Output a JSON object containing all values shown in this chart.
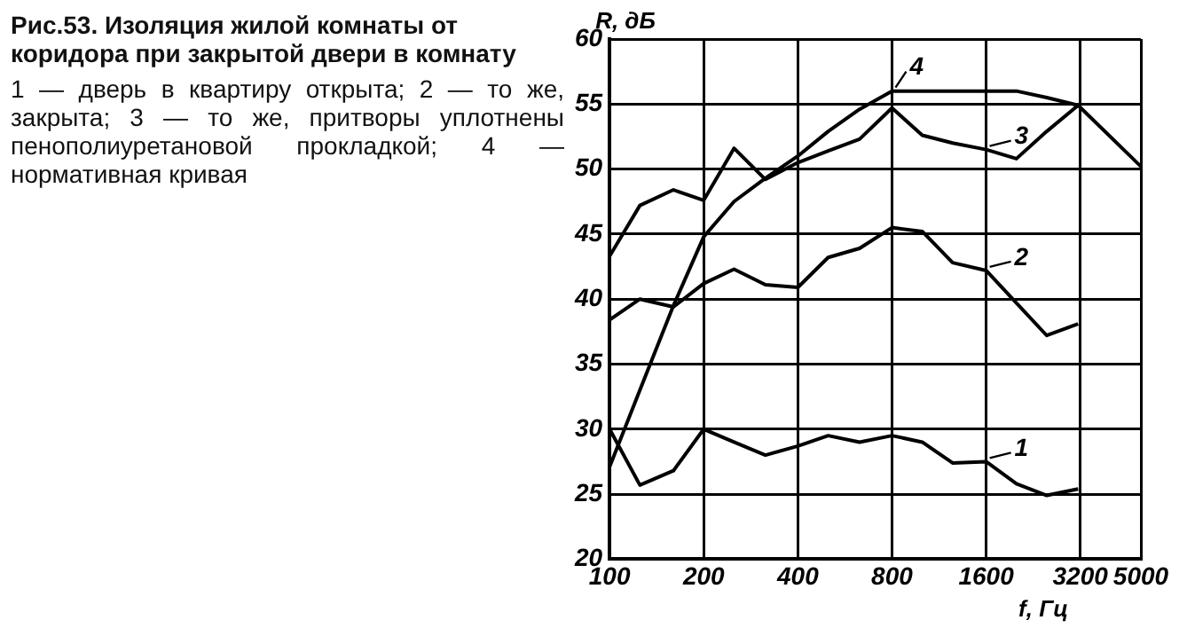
{
  "chart_data": {
    "type": "line",
    "title": "Рис.53. Изоляция жилой комнаты от коридора при закрытой двери в комнату",
    "annotations": [
      "1 — дверь в квартиру открыта; 2 — то же, закрыта; 3 — то же, притворы уплотнены пенополиуретановой прокладкой; 4 — нормативная кривая"
    ],
    "xlabel": "f, Гц",
    "ylabel": "R, дБ",
    "x": [
      100,
      125,
      160,
      200,
      250,
      315,
      400,
      500,
      630,
      800,
      1000,
      1250,
      1600,
      2000,
      2500,
      3150
    ],
    "series": [
      {
        "name": "1",
        "color": "#000000",
        "values": [
          30,
          25.7,
          26.8,
          30,
          29,
          28,
          28.7,
          29.5,
          29,
          29.5,
          29,
          27.4,
          27.5,
          25.8,
          24.9,
          25.4
        ]
      },
      {
        "name": "2",
        "color": "#000000",
        "values": [
          38.4,
          40,
          39.4,
          41.2,
          42.3,
          41.1,
          40.9,
          43.2,
          43.9,
          45.5,
          45.2,
          42.8,
          42.2,
          39.7,
          37.2,
          38.1
        ]
      },
      {
        "name": "3",
        "color": "#000000",
        "values": [
          43.3,
          47.2,
          48.4,
          47.6,
          51.6,
          49.2,
          50.5,
          51.4,
          52.3,
          54.7,
          52.6,
          52,
          51.5,
          50.8,
          52.9,
          54.9
        ]
      },
      {
        "name": "4",
        "color": "#000000",
        "x": [
          100,
          125,
          160,
          200,
          250,
          315,
          400,
          500,
          630,
          800,
          1000,
          1250,
          1600,
          2000,
          2500,
          3150,
          5000
        ],
        "values": [
          27.1,
          33,
          39.5,
          44.8,
          47.5,
          49.3,
          51,
          52.9,
          54.6,
          56,
          56,
          56,
          56,
          56,
          55.5,
          54.9,
          50.2
        ]
      }
    ],
    "log": "x",
    "xlim": [
      100,
      5000
    ],
    "xticks": [
      100,
      200,
      400,
      800,
      1600,
      3200,
      5000
    ],
    "ylim": [
      20,
      60
    ],
    "yticks": [
      20,
      25,
      30,
      35,
      40,
      45,
      50,
      55,
      60
    ],
    "grid": true,
    "line_style": "solid",
    "marker": "none",
    "legend": "right"
  }
}
